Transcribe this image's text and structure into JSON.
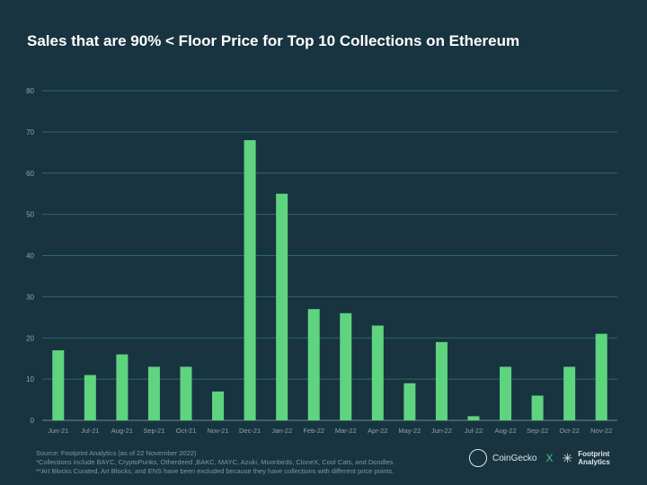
{
  "title": "Sales that are 90% < Floor Price for Top 10 Collections on Ethereum",
  "chart_data": {
    "type": "bar",
    "title": "Sales that are 90% < Floor Price for Top 10 Collections on Ethereum",
    "categories": [
      "Jun-21",
      "Jul-21",
      "Aug-21",
      "Sep-21",
      "Oct-21",
      "Nov-21",
      "Dec-21",
      "Jan-22",
      "Feb-22",
      "Mar-22",
      "Apr-22",
      "May-22",
      "Jun-22",
      "Jul-22",
      "Aug-22",
      "Sep-22",
      "Oct-22",
      "Nov-22"
    ],
    "values": [
      17,
      11,
      16,
      13,
      13,
      7,
      68,
      55,
      27,
      26,
      23,
      9,
      19,
      1,
      13,
      6,
      13,
      21
    ],
    "ylim": [
      0,
      80
    ],
    "yticks": [
      0,
      10,
      20,
      30,
      40,
      50,
      60,
      70,
      80
    ],
    "grid": true,
    "bar_color": "#5fd47f"
  },
  "footer": {
    "source": "Source: Footprint Analytics (as of 22 November 2022)",
    "note1": "*Collections include BAYC, CryptoPunks, Otherdeed ,BAKC, MAYC, Azuki, Moonbirds, CloneX, Cool Cats, and Doodles.",
    "note2": "**Art Blocks Curated, Art Blocks, and ENS have been excluded because they have collections with different price points."
  },
  "logos": {
    "coingecko": "CoinGecko",
    "x": "X",
    "footprint1": "Footprint",
    "footprint2": "Analytics"
  }
}
